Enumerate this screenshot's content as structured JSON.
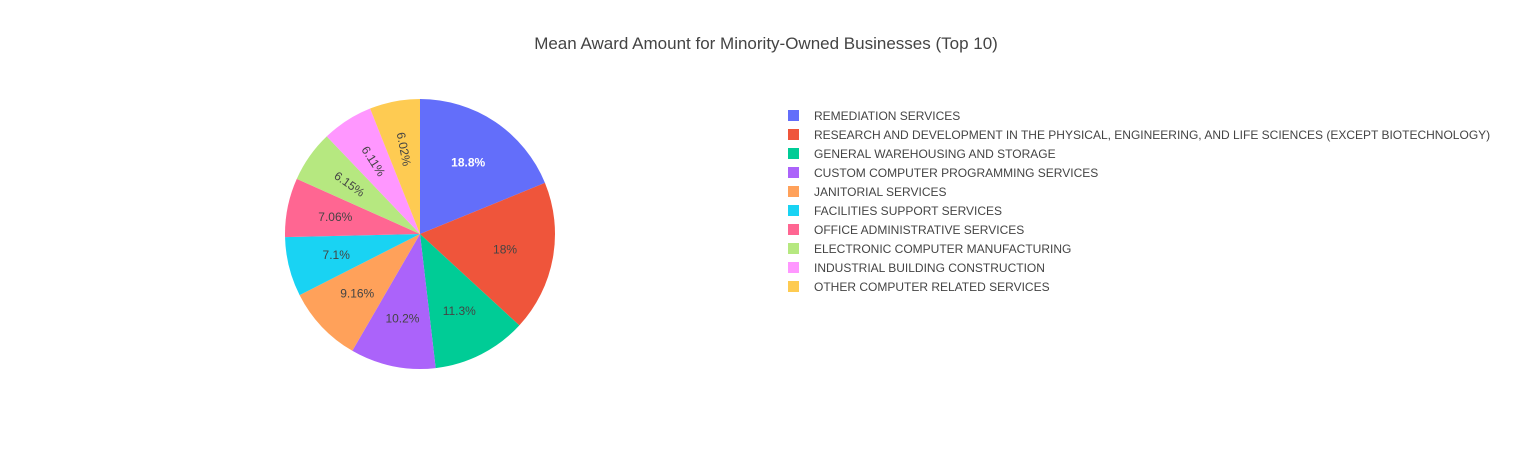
{
  "chart_data": {
    "type": "pie",
    "title": "Mean Award Amount for Minority-Owned Businesses (Top 10)",
    "legend_position": "right",
    "slices": [
      {
        "label": "REMEDIATION SERVICES",
        "percent": 18.8,
        "text": "18.8%",
        "color": "#636efa",
        "text_color": "#ffffff"
      },
      {
        "label": "RESEARCH AND DEVELOPMENT IN THE PHYSICAL, ENGINEERING, AND LIFE SCIENCES (EXCEPT BIOTECHNOLOGY)",
        "percent": 18.0,
        "text": "18%",
        "color": "#ef553b",
        "text_color": "#444444"
      },
      {
        "label": "GENERAL WAREHOUSING AND STORAGE",
        "percent": 11.3,
        "text": "11.3%",
        "color": "#00cc96",
        "text_color": "#444444"
      },
      {
        "label": "CUSTOM COMPUTER PROGRAMMING SERVICES",
        "percent": 10.2,
        "text": "10.2%",
        "color": "#ab63fa",
        "text_color": "#444444"
      },
      {
        "label": "JANITORIAL SERVICES",
        "percent": 9.16,
        "text": "9.16%",
        "color": "#ffa15a",
        "text_color": "#444444"
      },
      {
        "label": "FACILITIES SUPPORT SERVICES",
        "percent": 7.1,
        "text": "7.1%",
        "color": "#19d3f3",
        "text_color": "#444444"
      },
      {
        "label": "OFFICE ADMINISTRATIVE SERVICES",
        "percent": 7.06,
        "text": "7.06%",
        "color": "#ff6692",
        "text_color": "#444444"
      },
      {
        "label": "ELECTRONIC COMPUTER MANUFACTURING",
        "percent": 6.15,
        "text": "6.15%",
        "color": "#b6e880",
        "text_color": "#444444"
      },
      {
        "label": "INDUSTRIAL BUILDING CONSTRUCTION",
        "percent": 6.11,
        "text": "6.11%",
        "color": "#ff97ff",
        "text_color": "#444444"
      },
      {
        "label": "OTHER COMPUTER RELATED SERVICES",
        "percent": 6.02,
        "text": "6.02%",
        "color": "#fecb52",
        "text_color": "#444444"
      }
    ]
  }
}
